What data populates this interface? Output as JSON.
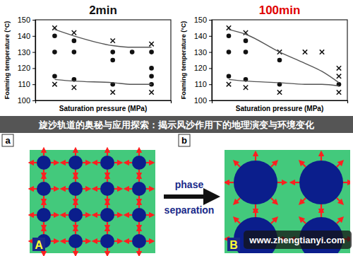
{
  "chart_data": [
    {
      "type": "scatter",
      "title": "2min",
      "x_label": "Saturation pressure (MPa)",
      "y_label": "Foaming temperature (°C)",
      "panel_label": "a",
      "xlim": [
        0,
        7
      ],
      "ylim": [
        100,
        150
      ],
      "yticks": [
        100,
        110,
        120,
        130,
        140,
        150
      ],
      "tick_labels": "y",
      "series": [
        {
          "marker": "cross",
          "color": "#111111",
          "x": [
            1,
            1,
            2,
            2,
            4,
            4,
            6,
            6
          ],
          "values": [
            145,
            110,
            142,
            108,
            137,
            105,
            135,
            105
          ]
        },
        {
          "marker": "circle",
          "color": "#111111",
          "x": [
            1,
            1,
            1,
            2,
            2,
            2,
            4,
            4,
            4,
            5,
            6,
            6,
            6,
            6
          ],
          "values": [
            140,
            130,
            115,
            137,
            130,
            113,
            130,
            125,
            110,
            130,
            130,
            120,
            115,
            110
          ]
        },
        {
          "type": "line",
          "color": "#555555",
          "x": [
            1,
            2,
            4,
            5,
            6
          ],
          "values": [
            144,
            140,
            134,
            133,
            133
          ]
        },
        {
          "type": "line",
          "color": "#555555",
          "x": [
            1,
            2,
            4,
            5,
            6
          ],
          "values": [
            113,
            112,
            111,
            110,
            110
          ]
        }
      ]
    },
    {
      "type": "scatter",
      "title": "100min",
      "x_label": "Saturation pressure (MPa)",
      "y_label": "Foaming temperature (°C)",
      "panel_label": "b",
      "xlim": [
        0,
        8
      ],
      "ylim": [
        100,
        150
      ],
      "yticks": [
        100,
        110,
        120,
        130,
        140,
        150
      ],
      "tick_labels": "y",
      "series": [
        {
          "marker": "cross",
          "color": "#111111",
          "x": [
            1,
            1,
            2,
            2,
            4,
            4,
            5.5,
            6.5,
            7.5,
            7.5,
            7.5
          ],
          "values": [
            145,
            110,
            142,
            108,
            130,
            105,
            130,
            130,
            120,
            115,
            105
          ]
        },
        {
          "marker": "circle",
          "color": "#111111",
          "x": [
            1,
            1,
            1,
            2,
            2,
            2,
            4,
            4,
            7.5
          ],
          "values": [
            140,
            130,
            115,
            137,
            130,
            113,
            125,
            110,
            110
          ]
        },
        {
          "type": "line",
          "color": "#555555",
          "x": [
            1,
            2,
            4,
            5.5,
            6.5,
            7.5
          ],
          "values": [
            144,
            141,
            130,
            123,
            118,
            111
          ]
        },
        {
          "type": "line",
          "color": "#555555",
          "x": [
            1,
            2,
            4,
            5.5,
            6.5,
            7.5
          ],
          "values": [
            113,
            112,
            111,
            110,
            110,
            109
          ]
        }
      ]
    }
  ],
  "banner": {
    "text": "旋沙轨道的奥秘与应用探索：揭示风沙作用下的地理演变与环境变化"
  },
  "diagram": {
    "panels": [
      {
        "label": "A"
      },
      {
        "label": "B"
      }
    ],
    "arrow_text": [
      "phase",
      "separation"
    ]
  },
  "watermark": {
    "text": "www.zhengtianyi.com"
  }
}
